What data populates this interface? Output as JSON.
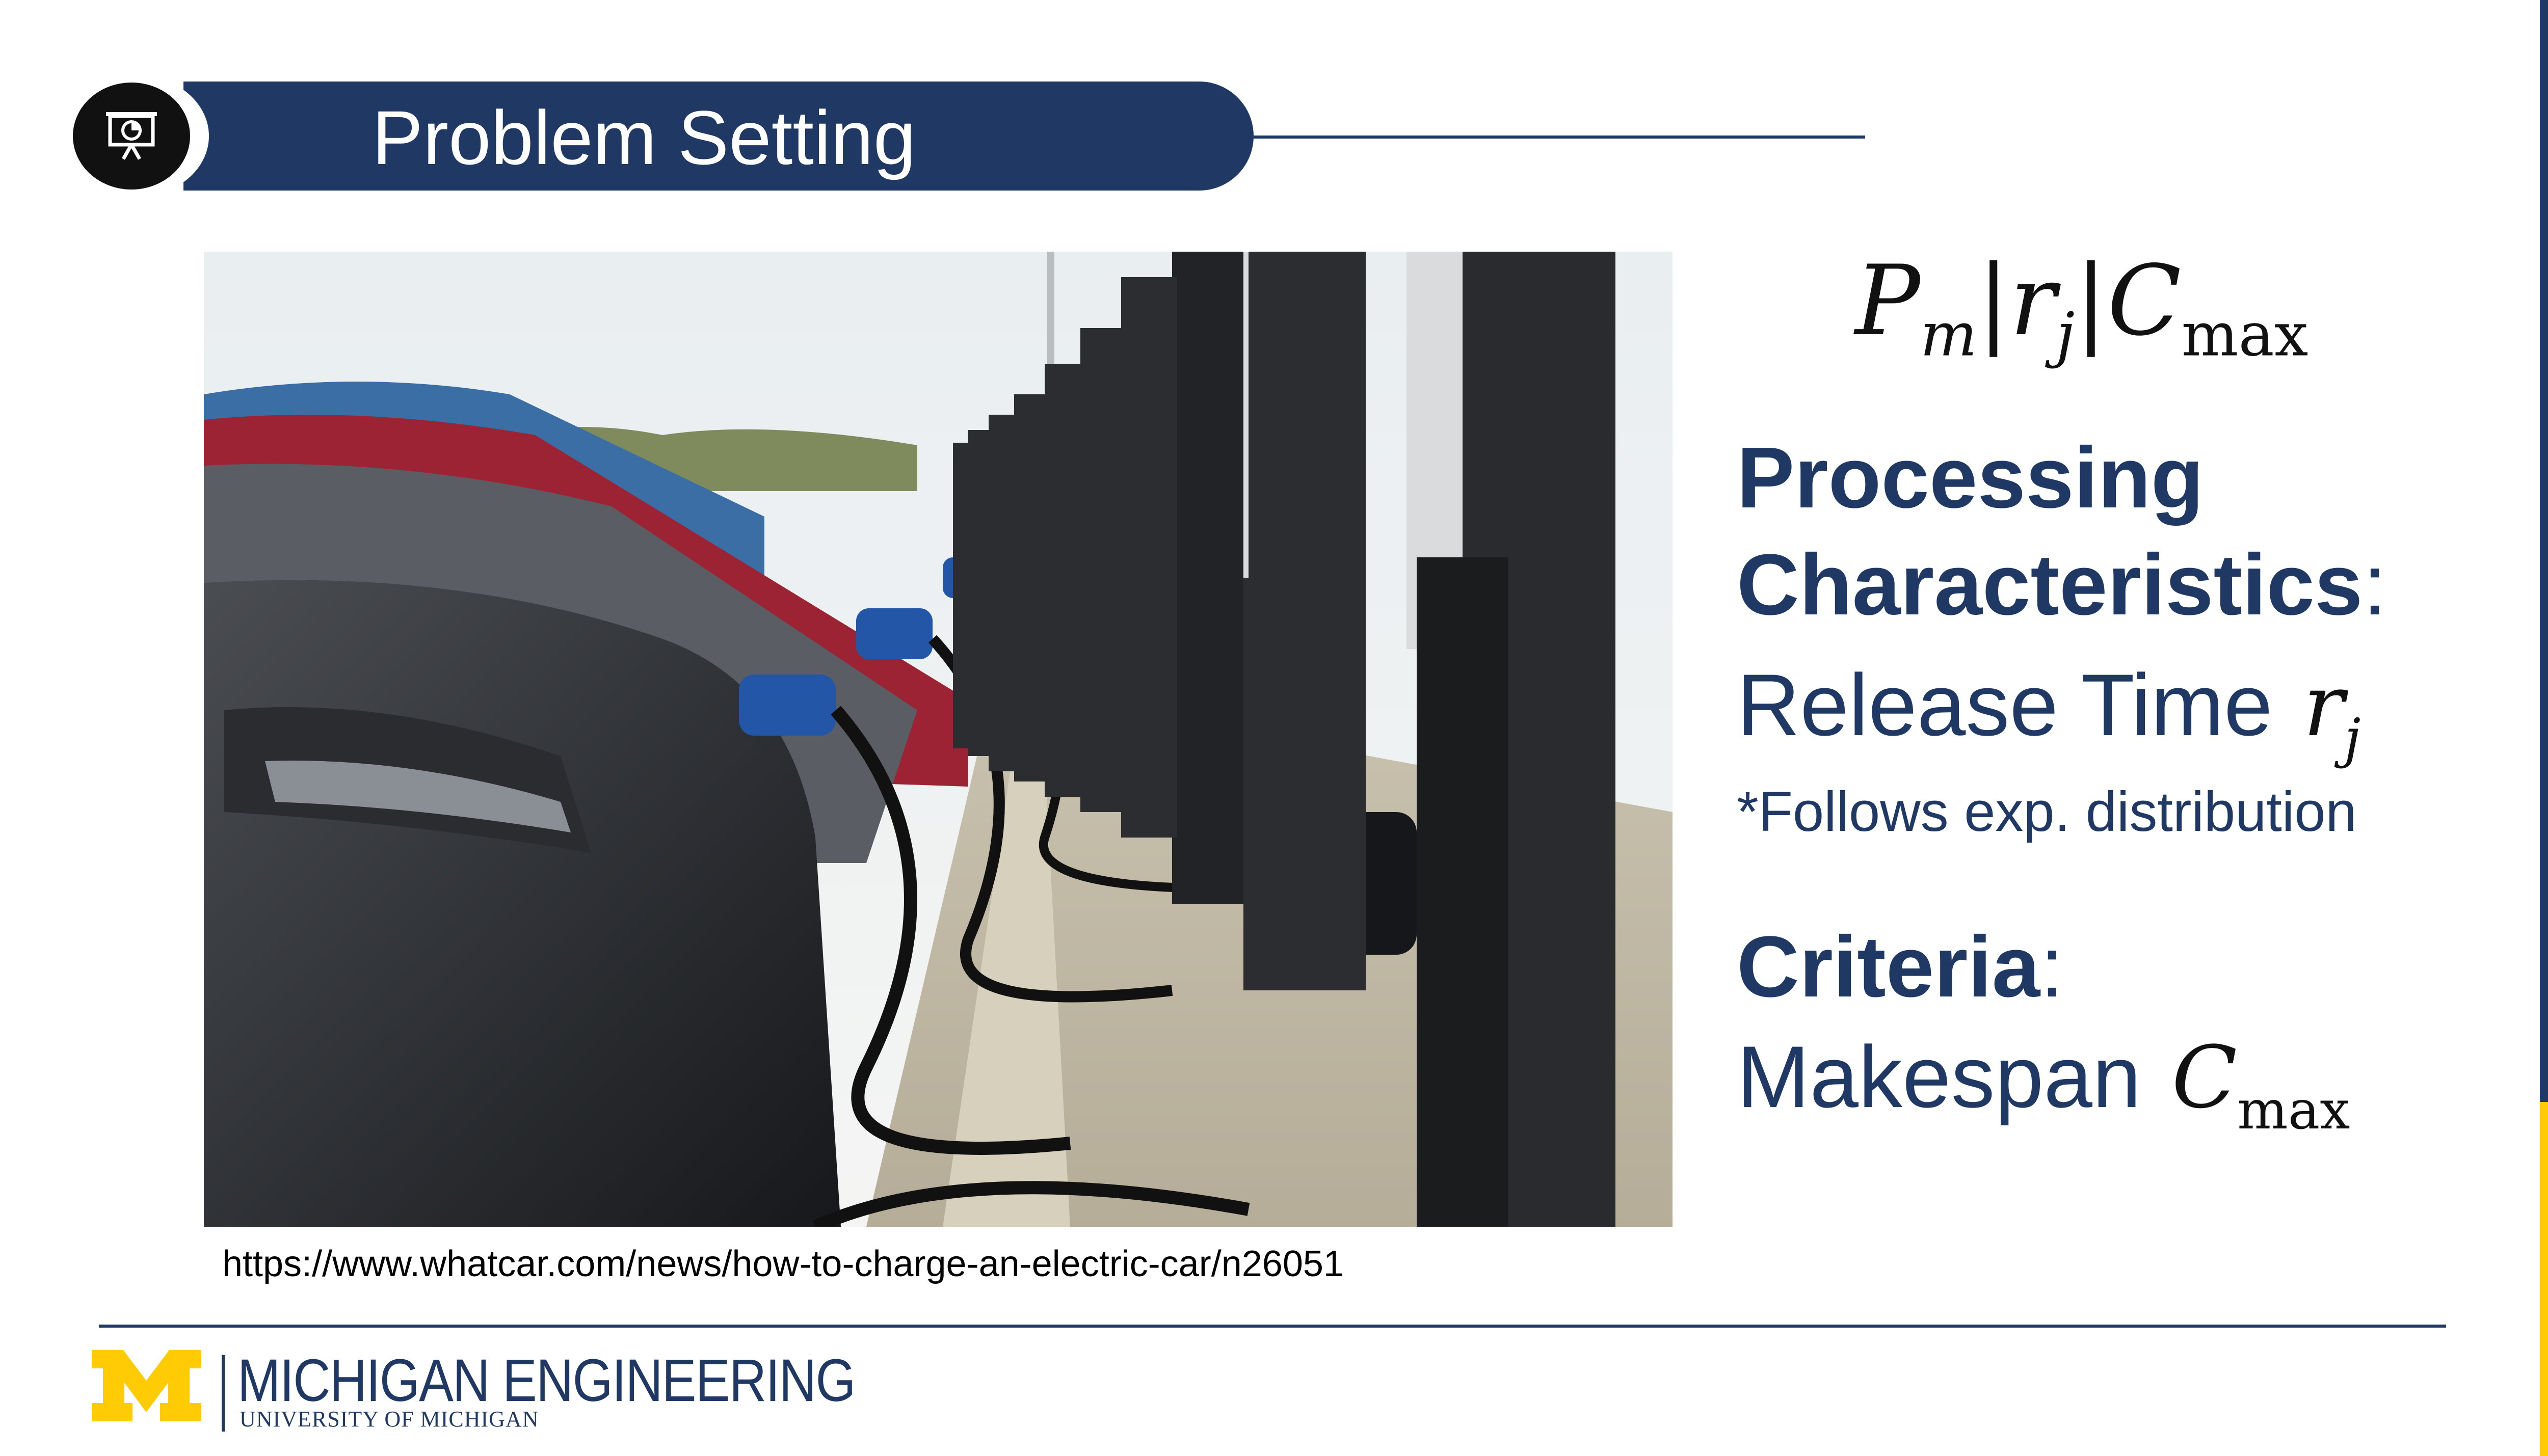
{
  "slide": {
    "title": "Problem Setting",
    "presentation_icon": "presentation-chart-icon"
  },
  "photo": {
    "subject": "photo-electric-cars-charging",
    "source_url": "https://www.whatcar.com/news/how-to-charge-an-electric-car/n26051"
  },
  "notation": {
    "p": "P",
    "m": "m",
    "r": "r",
    "j": "j",
    "c": "C",
    "max": "max",
    "bar": "|"
  },
  "processing": {
    "heading": "Processing",
    "heading2": "Characteristics",
    "colon": ":",
    "item_label": "Release Time",
    "note": "*Follows exp. distribution"
  },
  "criteria": {
    "heading": "Criteria",
    "colon": ":",
    "item_label": "Makespan"
  },
  "footer": {
    "logo_name": "MICHIGAN ENGINEERING",
    "logo_sub": "UNIVERSITY OF MICHIGAN",
    "logo_icon": "block-m-logo"
  },
  "colors": {
    "navy": "#1f3864",
    "maize": "#ffcb05"
  }
}
